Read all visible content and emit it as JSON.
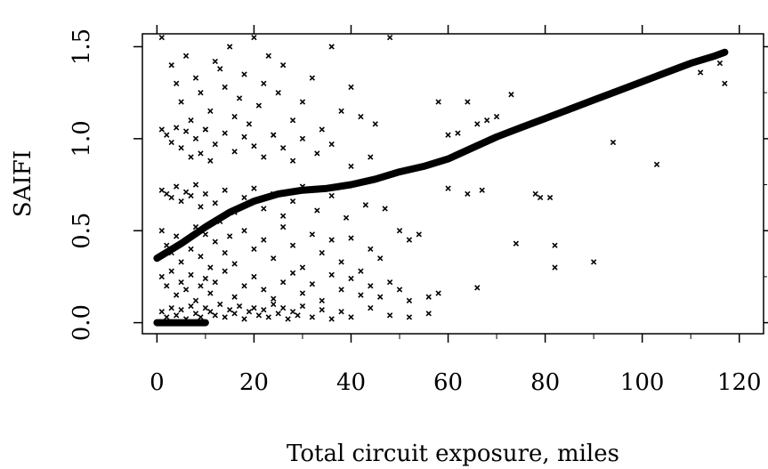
{
  "chart_data": {
    "type": "scatter",
    "title": "",
    "xlabel": "Total circuit exposure, miles",
    "ylabel": "SAIFI",
    "xlim": [
      -3,
      125
    ],
    "ylim": [
      -0.06,
      1.57
    ],
    "grid": false,
    "x_ticks": [
      0,
      20,
      40,
      60,
      80,
      100,
      120
    ],
    "x_tick_labels": [
      "0",
      "20",
      "40",
      "60",
      "80",
      "100",
      "120"
    ],
    "y_ticks": [
      0.0,
      0.5,
      1.0,
      1.5
    ],
    "y_tick_labels": [
      "0.0",
      "0.5",
      "1.0",
      "1.5"
    ],
    "series": [
      {
        "marker": "x",
        "color": "#000000",
        "points": [
          [
            1,
            1.55
          ],
          [
            3,
            1.4
          ],
          [
            4,
            1.3
          ],
          [
            5,
            1.2
          ],
          [
            6,
            1.45
          ],
          [
            7,
            1.1
          ],
          [
            8,
            1.33
          ],
          [
            9,
            1.25
          ],
          [
            10,
            1.05
          ],
          [
            11,
            1.15
          ],
          [
            12,
            1.42
          ],
          [
            13,
            1.38
          ],
          [
            14,
            1.28
          ],
          [
            15,
            1.5
          ],
          [
            16,
            1.12
          ],
          [
            17,
            1.22
          ],
          [
            18,
            1.35
          ],
          [
            19,
            1.08
          ],
          [
            20,
            1.55
          ],
          [
            21,
            1.18
          ],
          [
            22,
            1.3
          ],
          [
            23,
            1.45
          ],
          [
            24,
            1.02
          ],
          [
            25,
            1.25
          ],
          [
            26,
            1.4
          ],
          [
            28,
            1.1
          ],
          [
            30,
            1.2
          ],
          [
            32,
            1.33
          ],
          [
            34,
            1.05
          ],
          [
            36,
            1.5
          ],
          [
            38,
            1.15
          ],
          [
            40,
            1.28
          ],
          [
            42,
            1.12
          ],
          [
            45,
            1.08
          ],
          [
            48,
            1.55
          ],
          [
            1,
            1.05
          ],
          [
            2,
            1.02
          ],
          [
            3,
            0.98
          ],
          [
            4,
            1.06
          ],
          [
            5,
            0.95
          ],
          [
            6,
            1.04
          ],
          [
            7,
            0.9
          ],
          [
            8,
            1.0
          ],
          [
            9,
            0.92
          ],
          [
            10,
            1.05
          ],
          [
            11,
            0.88
          ],
          [
            12,
            0.97
          ],
          [
            14,
            1.03
          ],
          [
            16,
            0.93
          ],
          [
            18,
            1.01
          ],
          [
            20,
            0.96
          ],
          [
            22,
            0.9
          ],
          [
            24,
            1.02
          ],
          [
            26,
            0.95
          ],
          [
            28,
            0.88
          ],
          [
            30,
            1.0
          ],
          [
            33,
            0.92
          ],
          [
            36,
            0.97
          ],
          [
            40,
            0.85
          ],
          [
            44,
            0.9
          ],
          [
            1,
            0.72
          ],
          [
            2,
            0.7
          ],
          [
            3,
            0.68
          ],
          [
            4,
            0.74
          ],
          [
            5,
            0.66
          ],
          [
            6,
            0.71
          ],
          [
            7,
            0.69
          ],
          [
            8,
            0.75
          ],
          [
            9,
            0.63
          ],
          [
            10,
            0.7
          ],
          [
            12,
            0.65
          ],
          [
            14,
            0.72
          ],
          [
            16,
            0.6
          ],
          [
            18,
            0.68
          ],
          [
            20,
            0.73
          ],
          [
            22,
            0.62
          ],
          [
            24,
            0.7
          ],
          [
            26,
            0.58
          ],
          [
            28,
            0.66
          ],
          [
            30,
            0.74
          ],
          [
            33,
            0.61
          ],
          [
            36,
            0.69
          ],
          [
            39,
            0.57
          ],
          [
            43,
            0.64
          ],
          [
            47,
            0.62
          ],
          [
            1,
            0.5
          ],
          [
            2,
            0.42
          ],
          [
            3,
            0.38
          ],
          [
            4,
            0.47
          ],
          [
            5,
            0.33
          ],
          [
            6,
            0.45
          ],
          [
            7,
            0.4
          ],
          [
            8,
            0.52
          ],
          [
            9,
            0.36
          ],
          [
            10,
            0.48
          ],
          [
            11,
            0.3
          ],
          [
            12,
            0.44
          ],
          [
            13,
            0.55
          ],
          [
            14,
            0.38
          ],
          [
            15,
            0.47
          ],
          [
            16,
            0.32
          ],
          [
            18,
            0.5
          ],
          [
            20,
            0.4
          ],
          [
            22,
            0.45
          ],
          [
            24,
            0.35
          ],
          [
            26,
            0.52
          ],
          [
            28,
            0.42
          ],
          [
            30,
            0.3
          ],
          [
            32,
            0.48
          ],
          [
            34,
            0.38
          ],
          [
            36,
            0.45
          ],
          [
            38,
            0.33
          ],
          [
            40,
            0.46
          ],
          [
            42,
            0.28
          ],
          [
            44,
            0.4
          ],
          [
            46,
            0.35
          ],
          [
            50,
            0.5
          ],
          [
            52,
            0.45
          ],
          [
            54,
            0.48
          ],
          [
            1,
            0.25
          ],
          [
            2,
            0.2
          ],
          [
            3,
            0.28
          ],
          [
            4,
            0.15
          ],
          [
            5,
            0.22
          ],
          [
            6,
            0.18
          ],
          [
            7,
            0.26
          ],
          [
            8,
            0.12
          ],
          [
            9,
            0.2
          ],
          [
            10,
            0.24
          ],
          [
            11,
            0.16
          ],
          [
            12,
            0.22
          ],
          [
            14,
            0.28
          ],
          [
            16,
            0.14
          ],
          [
            18,
            0.2
          ],
          [
            20,
            0.25
          ],
          [
            22,
            0.18
          ],
          [
            24,
            0.13
          ],
          [
            26,
            0.22
          ],
          [
            28,
            0.27
          ],
          [
            30,
            0.16
          ],
          [
            32,
            0.21
          ],
          [
            34,
            0.12
          ],
          [
            36,
            0.26
          ],
          [
            38,
            0.18
          ],
          [
            40,
            0.24
          ],
          [
            42,
            0.15
          ],
          [
            44,
            0.2
          ],
          [
            46,
            0.14
          ],
          [
            48,
            0.22
          ],
          [
            50,
            0.18
          ],
          [
            52,
            0.12
          ],
          [
            56,
            0.14
          ],
          [
            58,
            0.16
          ],
          [
            1,
            0.06
          ],
          [
            2,
            0.03
          ],
          [
            3,
            0.08
          ],
          [
            4,
            0.04
          ],
          [
            5,
            0.07
          ],
          [
            6,
            0.02
          ],
          [
            7,
            0.09
          ],
          [
            8,
            0.05
          ],
          [
            9,
            0.03
          ],
          [
            10,
            0.08
          ],
          [
            11,
            0.06
          ],
          [
            12,
            0.04
          ],
          [
            13,
            0.1
          ],
          [
            14,
            0.03
          ],
          [
            15,
            0.07
          ],
          [
            16,
            0.05
          ],
          [
            17,
            0.09
          ],
          [
            18,
            0.02
          ],
          [
            19,
            0.06
          ],
          [
            20,
            0.08
          ],
          [
            21,
            0.04
          ],
          [
            22,
            0.07
          ],
          [
            23,
            0.03
          ],
          [
            24,
            0.1
          ],
          [
            25,
            0.05
          ],
          [
            26,
            0.08
          ],
          [
            27,
            0.02
          ],
          [
            28,
            0.06
          ],
          [
            29,
            0.04
          ],
          [
            30,
            0.09
          ],
          [
            32,
            0.03
          ],
          [
            34,
            0.07
          ],
          [
            36,
            0.02
          ],
          [
            38,
            0.06
          ],
          [
            40,
            0.03
          ],
          [
            44,
            0.08
          ],
          [
            48,
            0.04
          ],
          [
            52,
            0.03
          ],
          [
            56,
            0.05
          ],
          [
            58,
            1.2
          ],
          [
            60,
            1.02
          ],
          [
            62,
            1.03
          ],
          [
            64,
            1.2
          ],
          [
            66,
            1.08
          ],
          [
            68,
            1.1
          ],
          [
            70,
            1.12
          ],
          [
            73,
            1.24
          ],
          [
            60,
            0.73
          ],
          [
            64,
            0.7
          ],
          [
            67,
            0.72
          ],
          [
            74,
            0.43
          ],
          [
            78,
            0.7
          ],
          [
            79,
            0.68
          ],
          [
            81,
            0.68
          ],
          [
            82,
            0.42
          ],
          [
            82,
            0.3
          ],
          [
            90,
            0.33
          ],
          [
            94,
            0.98
          ],
          [
            103,
            0.86
          ],
          [
            66,
            0.19
          ],
          [
            112,
            1.36
          ],
          [
            116,
            1.41
          ],
          [
            117,
            1.3
          ]
        ]
      },
      {
        "type": "line",
        "color": "#000000",
        "x": [
          0,
          5,
          10,
          15,
          20,
          25,
          30,
          35,
          40,
          45,
          50,
          55,
          60,
          65,
          70,
          75,
          80,
          85,
          90,
          95,
          100,
          105,
          110,
          115,
          117
        ],
        "y": [
          0.35,
          0.43,
          0.52,
          0.6,
          0.66,
          0.7,
          0.72,
          0.73,
          0.75,
          0.78,
          0.82,
          0.85,
          0.89,
          0.95,
          1.01,
          1.06,
          1.11,
          1.16,
          1.21,
          1.26,
          1.31,
          1.36,
          1.41,
          1.45,
          1.47
        ]
      },
      {
        "type": "line",
        "color": "#000000",
        "x": [
          0,
          3,
          6,
          10
        ],
        "y": [
          0.0,
          0.0,
          0.0,
          0.0
        ]
      }
    ]
  }
}
